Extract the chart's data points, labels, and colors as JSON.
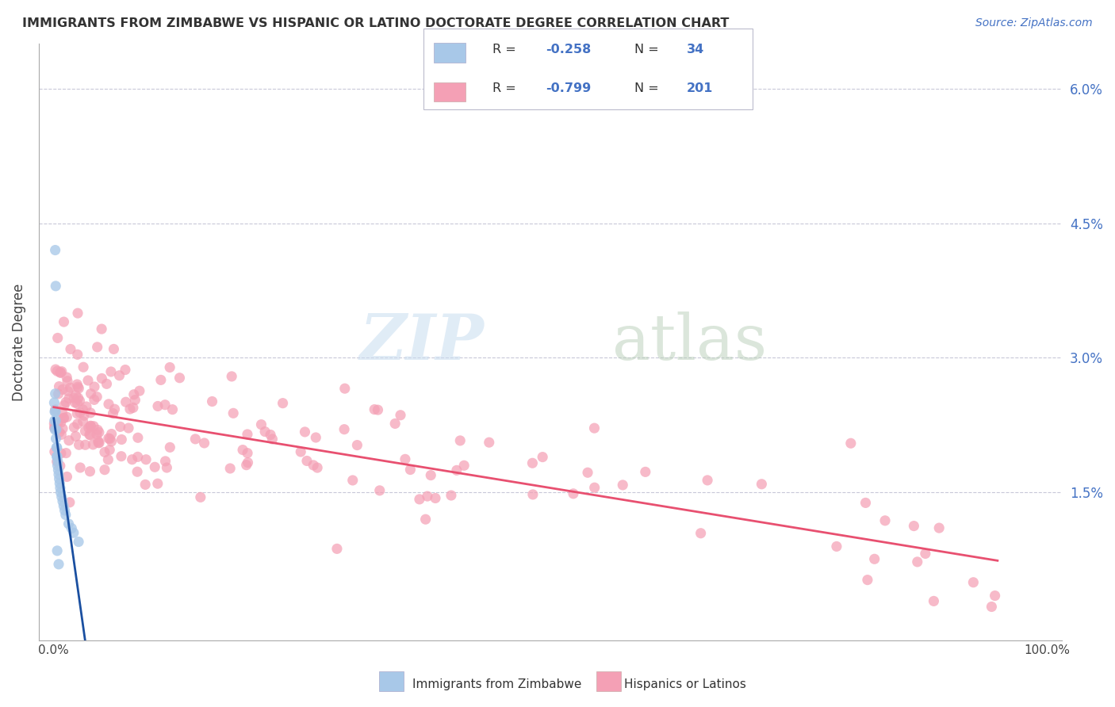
{
  "title": "IMMIGRANTS FROM ZIMBABWE VS HISPANIC OR LATINO DOCTORATE DEGREE CORRELATION CHART",
  "source": "Source: ZipAtlas.com",
  "ylabel": "Doctorate Degree",
  "blue_color": "#a8c8e8",
  "pink_color": "#f4a0b5",
  "blue_line_color": "#1a4fa0",
  "pink_line_color": "#e85070",
  "background_color": "#ffffff",
  "grid_color": "#c8c8d8",
  "legend_r1": "-0.258",
  "legend_n1": "34",
  "legend_r2": "-0.799",
  "legend_n2": "201",
  "ytick_vals": [
    0.0,
    1.5,
    3.0,
    4.5,
    6.0
  ],
  "ytick_labels": [
    "",
    "1.5%",
    "3.0%",
    "4.5%",
    "6.0%"
  ],
  "ymax": 6.5,
  "xmax": 100,
  "watermark_zip": "ZIP",
  "watermark_atlas": "atlas",
  "bottom_label1": "Immigrants from Zimbabwe",
  "bottom_label2": "Hispanics or Latinos"
}
